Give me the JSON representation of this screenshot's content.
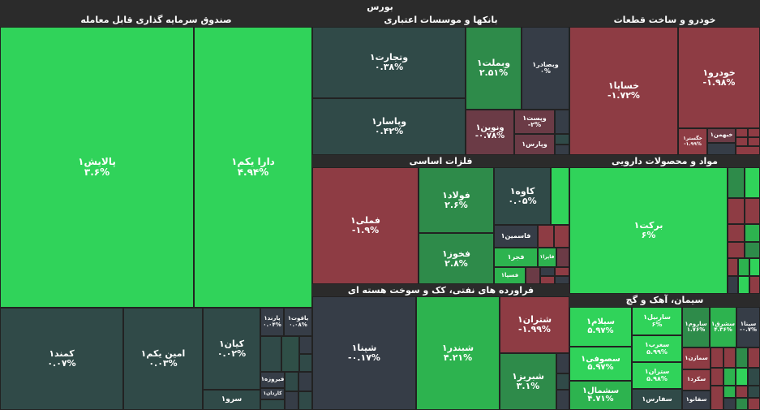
{
  "title": "بورس",
  "sectors": {
    "etf": "صندوق سرمایه گذاری قابل معامله",
    "banks": "بانکها و موسسات اعتباری",
    "auto": "خودرو و ساخت قطعات",
    "metals": "فلزات اساسی",
    "pharma": "مواد و محصولات دارویی",
    "oil": "فراورده های نفتی، کک و سوخت هسته ای",
    "cement": "سیمان، آهک و گچ"
  },
  "tiles": {
    "palayesh": {
      "n": "پالایش۱",
      "v": "۳.۶%"
    },
    "dara": {
      "n": "دارا یکم۱",
      "v": "۴.۹۴%"
    },
    "kamand": {
      "n": "کمند۱",
      "v": "۰.۰۷%"
    },
    "amin": {
      "n": "امین یکم۱",
      "v": "۰.۰۳%"
    },
    "kian": {
      "n": "کیان۱",
      "v": "۰.۰۲%"
    },
    "parand": {
      "n": "پارند۱",
      "v": "۰.۰۴%"
    },
    "yaghoot": {
      "n": "یاقوت۱",
      "v": "۰.۰۸%"
    },
    "firooze": {
      "n": "فیروزه۱",
      "v": ""
    },
    "kardan": {
      "n": "کاردان۱",
      "v": ""
    },
    "sarv": {
      "n": "سرو۱",
      "v": ""
    },
    "vtejarat": {
      "n": "وتجارت۱",
      "v": "۰.۳۸%"
    },
    "vbemellat": {
      "n": "وبملت۱",
      "v": "۲.۵۱%"
    },
    "vbsader": {
      "n": "وبصادر۱",
      "v": "۰%"
    },
    "vpasar": {
      "n": "وپاسار۱",
      "v": "۰.۴۲%"
    },
    "vnovin": {
      "n": "ونوین۱",
      "v": "-۰.۷۸%"
    },
    "vpost": {
      "n": "وپست۱",
      "v": "-۲%"
    },
    "vparsi": {
      "n": "وپارس۱",
      "v": ""
    },
    "khodro": {
      "n": "خودرو۱",
      "v": "-۱.۹۸%"
    },
    "khsapa": {
      "n": "خساپا۱",
      "v": "-۱.۷۲%"
    },
    "khgostar": {
      "n": "خگستر۱",
      "v": "-۱.۹۹%"
    },
    "khbahman": {
      "n": "خبهمن۱",
      "v": ""
    },
    "fameli": {
      "n": "فملی۱",
      "v": "-۱.۹%"
    },
    "foolad": {
      "n": "فولاد۱",
      "v": "۲.۶%"
    },
    "kave": {
      "n": "کاوه۱",
      "v": "۰.۰۵%"
    },
    "kasamin": {
      "n": "فاسمین۱",
      "v": ""
    },
    "fkhooz": {
      "n": "فخوز۱",
      "v": "۲.۸%"
    },
    "fajr": {
      "n": "فجر۱",
      "v": ""
    },
    "fapa": {
      "n": "فاپرا۱",
      "v": ""
    },
    "fespa": {
      "n": "فسپا۱",
      "v": ""
    },
    "barkat": {
      "n": "برکت۱",
      "v": "۶%"
    },
    "shana": {
      "n": "شپنا۱",
      "v": "-۰.۱۷%"
    },
    "shabandar": {
      "n": "شبندر۱",
      "v": "۴.۲۱%"
    },
    "shetran": {
      "n": "شتران۱",
      "v": "-۱.۹۹%"
    },
    "shabriz": {
      "n": "شبریز۱",
      "v": "۳.۱%"
    },
    "sylam": {
      "n": "سیلام۱",
      "v": "۵.۹۷%"
    },
    "soofi": {
      "n": "سصوفی۱",
      "v": "۵.۹۷%"
    },
    "shomal": {
      "n": "سشمال۱",
      "v": "۴.۷۱%"
    },
    "sarbil": {
      "n": "ساربیل۱",
      "v": "۶%"
    },
    "sgharb": {
      "n": "سغرب۱",
      "v": "۵.۹۹%"
    },
    "sestran": {
      "n": "ستران۱",
      "v": "۵.۹۸%"
    },
    "sfars": {
      "n": "سفارس۱",
      "v": ""
    },
    "saroom": {
      "n": "ساروم۱",
      "v": "۱.۷۶%"
    },
    "sharg": {
      "n": "سشرق۱",
      "v": "۴.۳۶%"
    },
    "sina": {
      "n": "سینا۱",
      "v": "-۰.۷%"
    },
    "semazan": {
      "n": "سمازن۱",
      "v": ""
    },
    "sekord": {
      "n": "سکرد۱",
      "v": ""
    },
    "safano": {
      "n": "سفانو۱",
      "v": ""
    }
  }
}
